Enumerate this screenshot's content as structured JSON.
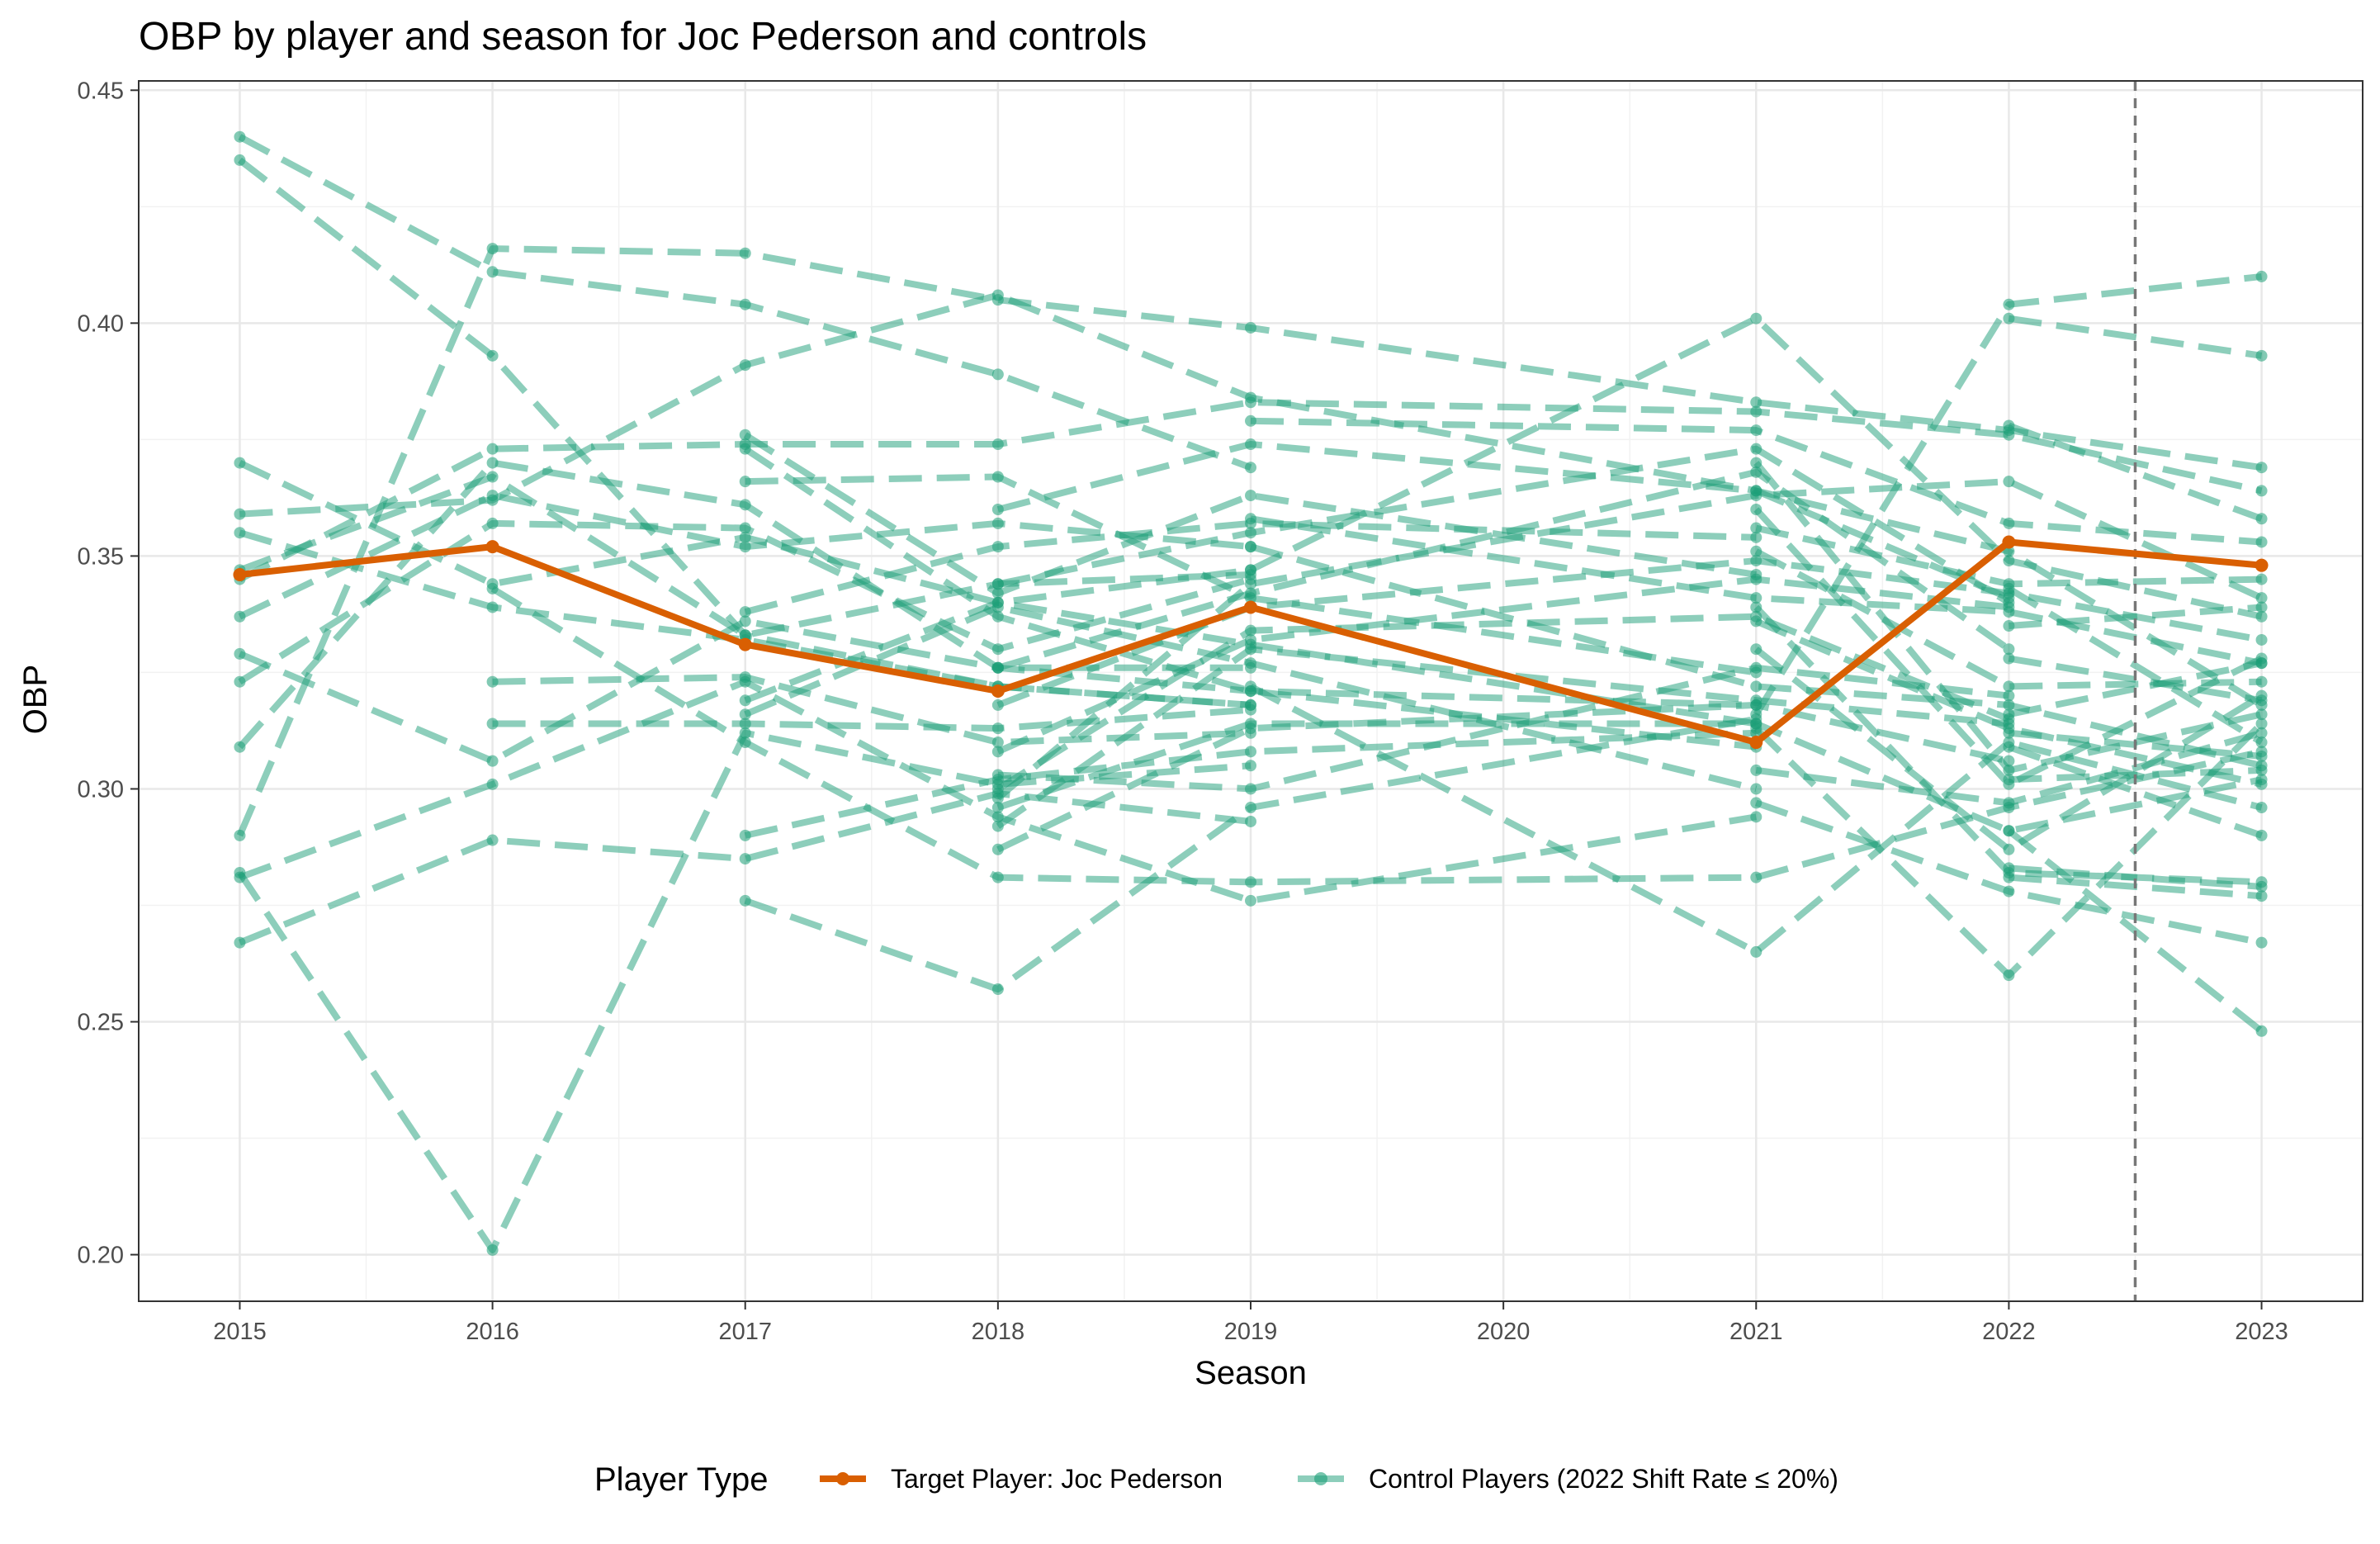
{
  "chart_data": {
    "type": "line",
    "title": "OBP by player and season for Joc Pederson and controls",
    "xlabel": "Season",
    "ylabel": "OBP",
    "xlim": [
      2014.6,
      2023.4
    ],
    "ylim": [
      0.19,
      0.452
    ],
    "x_ticks": [
      2015,
      2016,
      2017,
      2018,
      2019,
      2020,
      2021,
      2022,
      2023
    ],
    "x_tick_labels": [
      "2015",
      "2016",
      "2017",
      "2018",
      "2019",
      "2020",
      "2021",
      "2022",
      "2023"
    ],
    "y_ticks": [
      0.2,
      0.25,
      0.3,
      0.35,
      0.4,
      0.45
    ],
    "y_tick_labels": [
      "0.20",
      "0.25",
      "0.30",
      "0.35",
      "0.40",
      "0.45"
    ],
    "y_minor_ticks": [
      0.225,
      0.275,
      0.325,
      0.375,
      0.425
    ],
    "grid": true,
    "reference_line": {
      "x": 2022.5,
      "style": "dashed",
      "color": "#777777"
    },
    "legend": {
      "title": "Player Type",
      "position": "bottom",
      "entries": [
        {
          "label": "Target Player: Joc Pederson",
          "color": "#D95F02"
        },
        {
          "label": "Control Players (2022 Shift Rate ≤ 20%)",
          "color": "#1B9E77"
        }
      ]
    },
    "target": {
      "name": "Target Player: Joc Pederson",
      "color": "#D95F02",
      "points": [
        [
          2015,
          0.346
        ],
        [
          2016,
          0.352
        ],
        [
          2017,
          0.331
        ],
        [
          2018,
          0.321
        ],
        [
          2019,
          0.339
        ],
        [
          2021,
          0.31
        ],
        [
          2022,
          0.353
        ],
        [
          2023,
          0.348
        ]
      ]
    },
    "controls": {
      "name": "Control Players (2022 Shift Rate ≤ 20%)",
      "color": "#1B9E77",
      "series": [
        [
          [
            2015,
            0.44
          ],
          [
            2016,
            0.411
          ],
          [
            2017,
            0.404
          ],
          [
            2018,
            0.389
          ],
          [
            2019,
            0.369
          ]
        ],
        [
          [
            2015,
            0.435
          ],
          [
            2016,
            0.393
          ],
          [
            2017,
            0.333
          ],
          [
            2018,
            0.322
          ],
          [
            2019,
            0.318
          ]
        ],
        [
          [
            2015,
            0.37
          ],
          [
            2016,
            0.344
          ],
          [
            2017,
            0.354
          ],
          [
            2018,
            0.34
          ],
          [
            2019,
            0.347
          ]
        ],
        [
          [
            2015,
            0.359
          ],
          [
            2016,
            0.362
          ],
          [
            2017,
            0.391
          ],
          [
            2018,
            0.406
          ],
          [
            2019,
            0.384
          ],
          [
            2021,
            0.364
          ],
          [
            2022,
            0.351
          ],
          [
            2023,
            0.318
          ]
        ],
        [
          [
            2015,
            0.355
          ],
          [
            2016,
            0.339
          ],
          [
            2017,
            0.332
          ],
          [
            2018,
            0.322
          ],
          [
            2019,
            0.318
          ]
        ],
        [
          [
            2015,
            0.347
          ],
          [
            2016,
            0.367
          ],
          [
            2017,
            0.333
          ],
          [
            2018,
            0.344
          ],
          [
            2019,
            0.346
          ]
        ],
        [
          [
            2015,
            0.345
          ],
          [
            2016,
            0.373
          ],
          [
            2017,
            0.374
          ],
          [
            2018,
            0.374
          ],
          [
            2019,
            0.383
          ],
          [
            2021,
            0.381
          ],
          [
            2022,
            0.376
          ],
          [
            2023,
            0.364
          ]
        ],
        [
          [
            2015,
            0.337
          ],
          [
            2016,
            0.363
          ],
          [
            2017,
            0.352
          ],
          [
            2018,
            0.357
          ],
          [
            2019,
            0.352
          ]
        ],
        [
          [
            2015,
            0.329
          ],
          [
            2016,
            0.306
          ],
          [
            2017,
            0.336
          ],
          [
            2018,
            0.326
          ],
          [
            2019,
            0.321
          ],
          [
            2021,
            0.318
          ]
        ],
        [
          [
            2015,
            0.323
          ],
          [
            2016,
            0.357
          ],
          [
            2017,
            0.356
          ],
          [
            2018,
            0.33
          ],
          [
            2019,
            0.345
          ]
        ],
        [
          [
            2015,
            0.309
          ],
          [
            2016,
            0.37
          ],
          [
            2017,
            0.361
          ],
          [
            2018,
            0.326
          ],
          [
            2019,
            0.326
          ]
        ],
        [
          [
            2015,
            0.29
          ],
          [
            2016,
            0.416
          ],
          [
            2017,
            0.415
          ],
          [
            2018,
            0.405
          ],
          [
            2019,
            0.399
          ],
          [
            2021,
            0.383
          ],
          [
            2022,
            0.377
          ],
          [
            2023,
            0.369
          ]
        ],
        [
          [
            2015,
            0.282
          ],
          [
            2016,
            0.201
          ],
          [
            2017,
            0.312
          ],
          [
            2018,
            0.301
          ],
          [
            2019,
            0.305
          ]
        ],
        [
          [
            2015,
            0.281
          ],
          [
            2016,
            0.301
          ],
          [
            2017,
            0.323
          ],
          [
            2018,
            0.294
          ],
          [
            2019,
            0.276
          ],
          [
            2021,
            0.294
          ]
        ],
        [
          [
            2015,
            0.267
          ],
          [
            2016,
            0.289
          ],
          [
            2017,
            0.285
          ],
          [
            2018,
            0.299
          ],
          [
            2019,
            0.293
          ]
        ],
        [
          [
            2016,
            0.343
          ],
          [
            2017,
            0.31
          ],
          [
            2018,
            0.281
          ],
          [
            2019,
            0.28
          ],
          [
            2021,
            0.281
          ],
          [
            2022,
            0.296
          ],
          [
            2023,
            0.308
          ]
        ],
        [
          [
            2016,
            0.323
          ],
          [
            2017,
            0.324
          ],
          [
            2018,
            0.31
          ],
          [
            2019,
            0.312
          ]
        ],
        [
          [
            2016,
            0.314
          ],
          [
            2017,
            0.314
          ],
          [
            2018,
            0.313
          ],
          [
            2019,
            0.317
          ]
        ],
        [
          [
            2017,
            0.376
          ],
          [
            2018,
            0.342
          ],
          [
            2019,
            0.363
          ],
          [
            2021,
            0.346
          ]
        ],
        [
          [
            2017,
            0.373
          ],
          [
            2018,
            0.337
          ],
          [
            2019,
            0.321
          ],
          [
            2021,
            0.309
          ]
        ],
        [
          [
            2017,
            0.366
          ],
          [
            2018,
            0.367
          ],
          [
            2019,
            0.341
          ],
          [
            2021,
            0.325
          ]
        ],
        [
          [
            2017,
            0.338
          ],
          [
            2018,
            0.352
          ],
          [
            2019,
            0.357
          ],
          [
            2021,
            0.354
          ]
        ],
        [
          [
            2017,
            0.319
          ],
          [
            2018,
            0.34
          ],
          [
            2019,
            0.331
          ],
          [
            2021,
            0.314
          ]
        ],
        [
          [
            2017,
            0.316
          ],
          [
            2018,
            0.339
          ],
          [
            2019,
            0.327
          ],
          [
            2021,
            0.3
          ]
        ],
        [
          [
            2017,
            0.29
          ],
          [
            2018,
            0.302
          ],
          [
            2019,
            0.308
          ],
          [
            2021,
            0.312
          ]
        ],
        [
          [
            2017,
            0.276
          ],
          [
            2018,
            0.257
          ],
          [
            2019,
            0.296
          ],
          [
            2021,
            0.315
          ]
        ],
        [
          [
            2018,
            0.36
          ],
          [
            2019,
            0.374
          ],
          [
            2021,
            0.364
          ],
          [
            2022,
            0.341
          ]
        ],
        [
          [
            2018,
            0.344
          ],
          [
            2019,
            0.355
          ],
          [
            2021,
            0.373
          ],
          [
            2022,
            0.34
          ]
        ],
        [
          [
            2018,
            0.326
          ],
          [
            2019,
            0.342
          ],
          [
            2021,
            0.368
          ],
          [
            2022,
            0.33
          ]
        ],
        [
          [
            2018,
            0.318
          ],
          [
            2019,
            0.339
          ],
          [
            2021,
            0.349
          ],
          [
            2022,
            0.342
          ],
          [
            2023,
            0.332
          ]
        ],
        [
          [
            2018,
            0.308
          ],
          [
            2019,
            0.332
          ],
          [
            2021,
            0.345
          ],
          [
            2022,
            0.339
          ]
        ],
        [
          [
            2018,
            0.303
          ],
          [
            2019,
            0.3
          ],
          [
            2021,
            0.326
          ],
          [
            2022,
            0.32
          ]
        ],
        [
          [
            2018,
            0.3
          ],
          [
            2019,
            0.334
          ],
          [
            2021,
            0.337
          ],
          [
            2022,
            0.315
          ]
        ],
        [
          [
            2018,
            0.298
          ],
          [
            2019,
            0.344
          ],
          [
            2021,
            0.363
          ],
          [
            2022,
            0.366
          ],
          [
            2023,
            0.341
          ]
        ],
        [
          [
            2018,
            0.296
          ],
          [
            2019,
            0.314
          ],
          [
            2021,
            0.314
          ],
          [
            2022,
            0.291
          ],
          [
            2023,
            0.302
          ]
        ],
        [
          [
            2018,
            0.292
          ],
          [
            2019,
            0.33
          ],
          [
            2021,
            0.319
          ],
          [
            2022,
            0.314
          ]
        ],
        [
          [
            2018,
            0.287
          ],
          [
            2019,
            0.313
          ],
          [
            2021,
            0.318
          ],
          [
            2022,
            0.306
          ]
        ],
        [
          [
            2019,
            0.379
          ],
          [
            2021,
            0.377
          ],
          [
            2022,
            0.357
          ],
          [
            2023,
            0.353
          ]
        ],
        [
          [
            2019,
            0.358
          ],
          [
            2021,
            0.341
          ],
          [
            2022,
            0.338
          ],
          [
            2023,
            0.327
          ]
        ],
        [
          [
            2019,
            0.352
          ],
          [
            2021,
            0.322
          ],
          [
            2022,
            0.318
          ],
          [
            2023,
            0.305
          ]
        ],
        [
          [
            2019,
            0.347
          ],
          [
            2021,
            0.401
          ],
          [
            2022,
            0.349
          ],
          [
            2023,
            0.337
          ]
        ],
        [
          [
            2019,
            0.322
          ],
          [
            2021,
            0.265
          ],
          [
            2022,
            0.31
          ],
          [
            2023,
            0.296
          ]
        ],
        [
          [
            2021,
            0.37
          ],
          [
            2022,
            0.304
          ],
          [
            2023,
            0.316
          ]
        ],
        [
          [
            2021,
            0.36
          ],
          [
            2022,
            0.301
          ],
          [
            2023,
            0.328
          ]
        ],
        [
          [
            2021,
            0.356
          ],
          [
            2022,
            0.344
          ],
          [
            2023,
            0.345
          ]
        ],
        [
          [
            2021,
            0.351
          ],
          [
            2022,
            0.322
          ],
          [
            2023,
            0.323
          ]
        ],
        [
          [
            2021,
            0.339
          ],
          [
            2022,
            0.282
          ],
          [
            2023,
            0.28
          ]
        ],
        [
          [
            2021,
            0.336
          ],
          [
            2022,
            0.313
          ],
          [
            2023,
            0.301
          ]
        ],
        [
          [
            2021,
            0.33
          ],
          [
            2022,
            0.287
          ],
          [
            2023,
            0.32
          ]
        ],
        [
          [
            2021,
            0.316
          ],
          [
            2022,
            0.404
          ],
          [
            2023,
            0.41
          ]
        ],
        [
          [
            2021,
            0.313
          ],
          [
            2022,
            0.26
          ],
          [
            2023,
            0.314
          ]
        ],
        [
          [
            2021,
            0.304
          ],
          [
            2022,
            0.297
          ],
          [
            2023,
            0.312
          ]
        ],
        [
          [
            2021,
            0.297
          ],
          [
            2022,
            0.278
          ],
          [
            2023,
            0.267
          ]
        ],
        [
          [
            2022,
            0.401
          ],
          [
            2023,
            0.393
          ]
        ],
        [
          [
            2022,
            0.378
          ],
          [
            2023,
            0.358
          ]
        ],
        [
          [
            2022,
            0.343
          ],
          [
            2023,
            0.31
          ]
        ],
        [
          [
            2022,
            0.335
          ],
          [
            2023,
            0.339
          ]
        ],
        [
          [
            2022,
            0.328
          ],
          [
            2023,
            0.319
          ]
        ],
        [
          [
            2022,
            0.316
          ],
          [
            2023,
            0.327
          ]
        ],
        [
          [
            2022,
            0.312
          ],
          [
            2023,
            0.307
          ]
        ],
        [
          [
            2022,
            0.309
          ],
          [
            2023,
            0.29
          ]
        ],
        [
          [
            2022,
            0.302
          ],
          [
            2023,
            0.304
          ]
        ],
        [
          [
            2022,
            0.291
          ],
          [
            2023,
            0.248
          ]
        ],
        [
          [
            2022,
            0.283
          ],
          [
            2023,
            0.279
          ]
        ],
        [
          [
            2022,
            0.281
          ],
          [
            2023,
            0.277
          ]
        ]
      ]
    }
  }
}
